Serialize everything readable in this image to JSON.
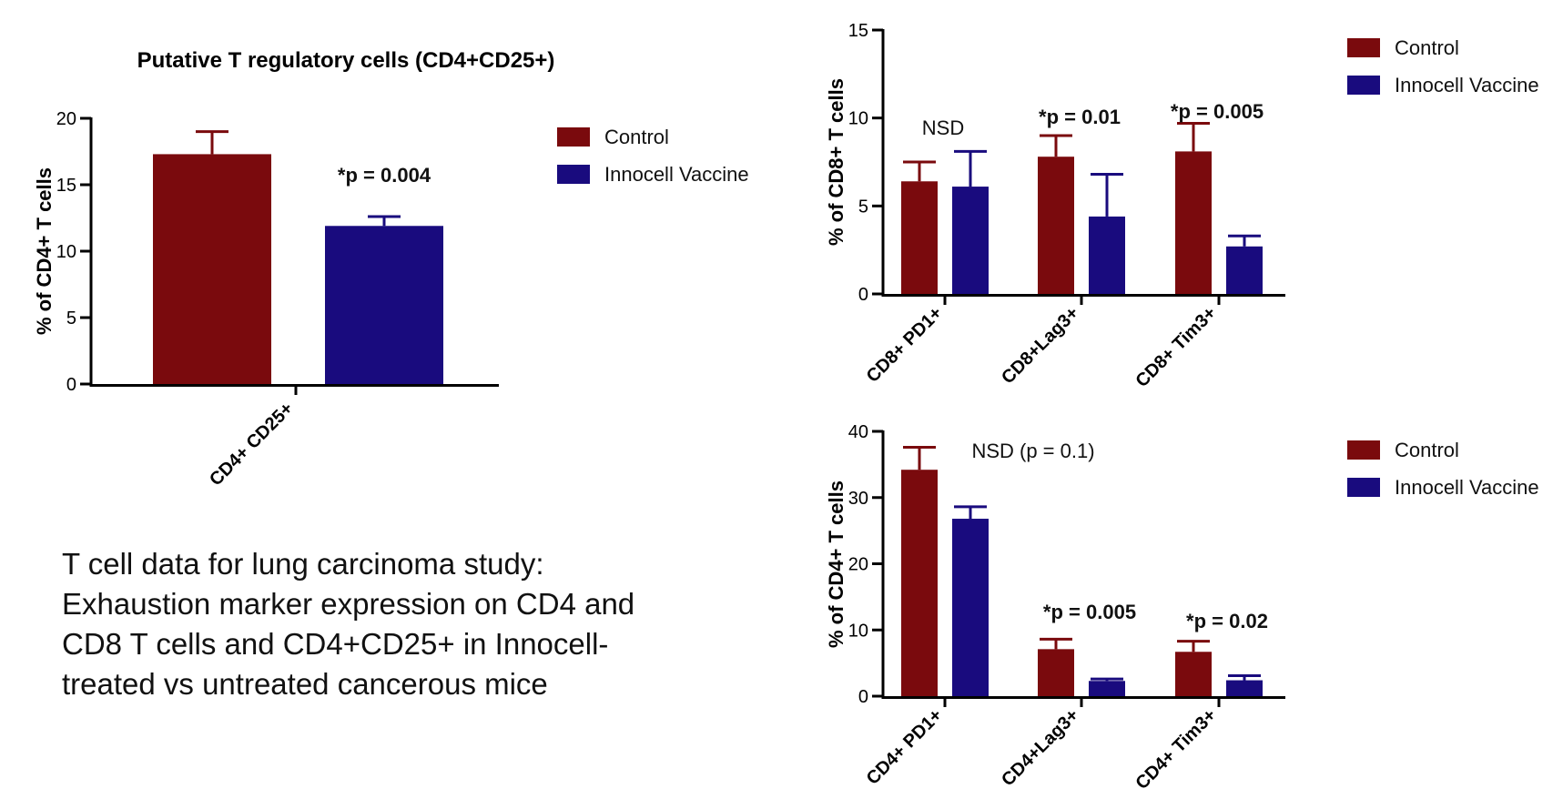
{
  "colors": {
    "control": "#7a0a0d",
    "vaccine": "#190b7e",
    "axis": "#000000"
  },
  "caption": {
    "lines": [
      "T cell data for lung carcinoma study:",
      "Exhaustion marker expression on CD4 and",
      "CD8 T cells and CD4+CD25+ in Innocell-",
      "treated vs untreated cancerous mice"
    ]
  },
  "chart_data": [
    {
      "type": "bar",
      "title": "Putative T regulatory cells (CD4+CD25+)",
      "xlabel": "",
      "ylabel": "% of CD4+ T cells",
      "ylim": [
        0,
        20
      ],
      "yticks": [
        0,
        5,
        10,
        15,
        20
      ],
      "categories": [
        "CD4+ CD25+"
      ],
      "series": [
        {
          "name": "Control",
          "values": [
            17.3
          ],
          "errors": [
            1.7
          ]
        },
        {
          "name": "Innocell Vaccine",
          "values": [
            11.9
          ],
          "errors": [
            0.7
          ]
        }
      ],
      "annotations": [
        "*p = 0.004"
      ],
      "legend": [
        "Control",
        "Innocell Vaccine"
      ],
      "legend_position": "right"
    },
    {
      "type": "bar",
      "title": "",
      "xlabel": "",
      "ylabel": "% of CD8+ T cells",
      "ylim": [
        0,
        15
      ],
      "yticks": [
        0,
        5,
        10,
        15
      ],
      "categories": [
        "CD8+ PD1+",
        "CD8+Lag3+",
        "CD8+ Tim3+"
      ],
      "series": [
        {
          "name": "Control",
          "values": [
            6.4,
            7.8,
            8.1
          ],
          "errors": [
            1.1,
            1.2,
            1.6
          ]
        },
        {
          "name": "Innocell Vaccine",
          "values": [
            6.1,
            4.4,
            2.7
          ],
          "errors": [
            2.0,
            2.4,
            0.6
          ]
        }
      ],
      "annotations": [
        "NSD",
        "*p = 0.01",
        "*p = 0.005"
      ],
      "legend": [
        "Control",
        "Innocell Vaccine"
      ],
      "legend_position": "top-right"
    },
    {
      "type": "bar",
      "title": "",
      "xlabel": "",
      "ylabel": "% of CD4+ T cells",
      "ylim": [
        0,
        40
      ],
      "yticks": [
        0,
        10,
        20,
        30,
        40
      ],
      "categories": [
        "CD4+ PD1+",
        "CD4+Lag3+",
        "CD4+ Tim3+"
      ],
      "series": [
        {
          "name": "Control",
          "values": [
            34.2,
            7.1,
            6.7
          ],
          "errors": [
            3.4,
            1.5,
            1.6
          ]
        },
        {
          "name": "Innocell Vaccine",
          "values": [
            26.8,
            2.3,
            2.4
          ],
          "errors": [
            1.8,
            0.3,
            0.7
          ]
        }
      ],
      "annotations": [
        "NSD (p = 0.1)",
        "*p = 0.005",
        "*p = 0.02"
      ],
      "legend": [
        "Control",
        "Innocell Vaccine"
      ],
      "legend_position": "top-right"
    }
  ]
}
